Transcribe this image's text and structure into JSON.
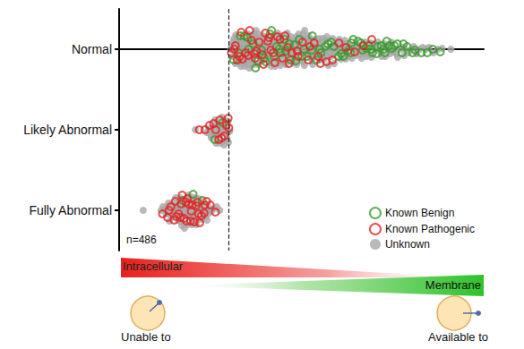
{
  "chart_data": {
    "type": "scatter",
    "categories": [
      "Normal",
      "Likely Abnormal",
      "Fully Abnormal"
    ],
    "xlim": [
      0,
      100
    ],
    "tick_labels": "y",
    "grid": false,
    "legend": "lower right",
    "threshold": {
      "x": 30,
      "line_style": "dashed"
    },
    "series": [
      {
        "name": "Known Benign",
        "color": "#3a9b2c",
        "marker": "open",
        "values": {
          "Normal": [
            31.4,
            32.8,
            34.3,
            35.5,
            36.8,
            38.0,
            39.1,
            40.2,
            41.4,
            42.5,
            33.2,
            35.2,
            37.4,
            39.8,
            41.8,
            43.9,
            45.3,
            46.7,
            48.1,
            49.4,
            44.3,
            45.7,
            47.0,
            48.5,
            50.2,
            51.5,
            52.8,
            54.1,
            55.4,
            56.6,
            50.7,
            53.0,
            55.0,
            57.3,
            58.9,
            60.2,
            61.5,
            62.9,
            64.2,
            65.5,
            58.2,
            60.9,
            63.5,
            66.3,
            67.7,
            69.0,
            70.6,
            71.9,
            73.4,
            74.8,
            63.7,
            66.8,
            68.4,
            70.9,
            72.5,
            74.1,
            76.3,
            77.6,
            79.0,
            80.5,
            69.5,
            72.9,
            75.5,
            78.0,
            81.2,
            82.9,
            84.5,
            86.0,
            88.1,
            43.2
          ],
          "Likely Abnormal": [
            26.2,
            28.4
          ],
          "Fully Abnormal": [
            17.5,
            20.3,
            22.8
          ]
        }
      },
      {
        "name": "Known Pathogenic",
        "color": "#e02424",
        "marker": "open",
        "values": {
          "Normal": [
            30.8,
            31.6,
            32.4,
            33.1,
            33.8,
            34.7,
            35.4,
            36.3,
            37.1,
            37.7,
            38.4,
            39.3,
            40.1,
            40.8,
            41.6,
            42.3,
            43.4,
            44.1,
            44.8,
            45.5,
            31.9,
            33.5,
            35.8,
            37.3,
            39.6,
            41.1,
            42.7,
            46.2,
            47.4,
            48.8,
            50.3,
            51.9,
            53.5,
            55.2,
            56.9,
            58.5,
            60.3,
            62.2,
            64.6,
            67.0,
            46.6,
            49.1,
            52.3,
            54.6,
            69.3
          ],
          "Likely Abnormal": [
            22.0,
            23.5,
            24.8,
            25.9,
            26.5,
            27.3,
            28.1,
            28.9,
            29.4,
            30.1,
            27.6,
            29.9
          ],
          "Fully Abnormal": [
            11.9,
            13.3,
            14.2,
            15.1,
            15.7,
            16.3,
            16.8,
            17.3,
            17.8,
            18.3,
            18.7,
            19.1,
            19.6,
            20.1,
            20.6,
            21.1,
            21.5,
            22.1,
            22.6,
            23.3,
            24.0,
            25.0,
            13.7,
            15.4,
            17.0,
            18.5,
            19.8,
            21.8,
            23.5,
            26.4
          ]
        }
      },
      {
        "name": "Unknown",
        "color": "#a8a8a8",
        "marker": "filled",
        "values": {
          "Normal": [
            30.6,
            31.2,
            31.8,
            32.1,
            32.5,
            33.0,
            33.4,
            33.9,
            34.2,
            34.8,
            30.9,
            31.5,
            32.3,
            32.9,
            33.6,
            34.1,
            34.6,
            35.0,
            35.3,
            35.7,
            31.1,
            31.9,
            32.7,
            33.3,
            34.0,
            34.4,
            35.1,
            35.6,
            36.0,
            36.4,
            35.9,
            36.2,
            36.7,
            37.0,
            37.3,
            37.8,
            38.1,
            38.5,
            38.9,
            39.2,
            36.5,
            36.9,
            37.5,
            37.9,
            38.3,
            38.7,
            39.0,
            39.5,
            39.9,
            40.3,
            40.0,
            40.6,
            40.9,
            41.3,
            41.7,
            42.0,
            42.4,
            42.8,
            43.1,
            43.5,
            40.4,
            41.0,
            41.5,
            41.9,
            42.2,
            42.6,
            43.0,
            43.3,
            43.8,
            44.2,
            44.0,
            44.5,
            44.9,
            45.2,
            45.6,
            46.0,
            46.3,
            46.8,
            47.1,
            47.5,
            44.7,
            45.0,
            45.4,
            45.9,
            46.5,
            46.9,
            47.3,
            47.8,
            48.2,
            48.6,
            48.0,
            48.4,
            48.9,
            49.3,
            49.7,
            50.1,
            50.5,
            50.9,
            51.3,
            51.8,
            49.0,
            49.5,
            50.0,
            50.4,
            50.8,
            51.1,
            51.6,
            52.0,
            52.4,
            52.9,
            52.2,
            52.7,
            53.1,
            53.6,
            54.0,
            54.4,
            54.9,
            55.3,
            55.8,
            56.2,
            53.3,
            53.8,
            54.3,
            54.7,
            55.1,
            55.6,
            56.0,
            56.5,
            57.0,
            57.4,
            56.8,
            57.2,
            57.7,
            58.1,
            58.6,
            59.0,
            59.5,
            59.9,
            60.4,
            60.8,
            57.9,
            58.4,
            59.3,
            60.1,
            60.6,
            61.2,
            61.7,
            62.1,
            62.6,
            63.0,
            61.4,
            62.4,
            63.3,
            63.8,
            64.3,
            64.9,
            65.4,
            66.0,
            66.5,
            67.1,
            64.0,
            65.1,
            66.2,
            67.5,
            68.0,
            68.6,
            69.2,
            69.8,
            70.4,
            71.0,
            67.8,
            69.0,
            70.1,
            71.5,
            72.0,
            72.7,
            73.3,
            74.0,
            74.6,
            75.2,
            71.8,
            73.0,
            74.3,
            75.8,
            76.4,
            77.1,
            77.9,
            78.6,
            79.3,
            80.1,
            76.0,
            78.2,
            80.8,
            81.6,
            82.4,
            83.3,
            84.1,
            85.0,
            86.2,
            87.4,
            33.7,
            34.5,
            36.6,
            38.2,
            39.7,
            41.6,
            43.7,
            46.1,
            48.7,
            51.4,
            32.0,
            35.4,
            37.2,
            39.4,
            42.9,
            45.8,
            50.3,
            53.4,
            55.9,
            58.8,
            37.6,
            41.2,
            44.4,
            47.6,
            52.6,
            56.7,
            61.9,
            65.7,
            88.6,
            91.0
          ],
          "Likely Abnormal": [
            20.9,
            24.1,
            24.6,
            25.0,
            25.3,
            25.7,
            26.0,
            26.3,
            26.6,
            26.9,
            27.2,
            27.5,
            27.8,
            28.0,
            28.3,
            28.5,
            28.8,
            29.0,
            29.3,
            29.5,
            29.8,
            30.0,
            30.3,
            25.5,
            26.8,
            27.7,
            28.6,
            29.6,
            27.0,
            28.2
          ],
          "Fully Abnormal": [
            6.6,
            11.5,
            12.0,
            12.6,
            13.1,
            13.5,
            14.0,
            14.4,
            14.8,
            15.2,
            15.5,
            15.9,
            16.2,
            16.6,
            16.9,
            17.2,
            17.6,
            17.9,
            18.2,
            18.6,
            18.9,
            19.2,
            19.5,
            19.9,
            20.2,
            20.5,
            20.9,
            21.2,
            21.6,
            21.9,
            22.3,
            22.7,
            23.1,
            23.6,
            24.1,
            24.7,
            25.3,
            26.0,
            26.8,
            27.6,
            13.8,
            15.0,
            16.4,
            17.4,
            18.4,
            19.0,
            19.7,
            20.7,
            21.4,
            22.0,
            12.9,
            14.6,
            16.0,
            17.0,
            18.0,
            19.4,
            20.0,
            21.0,
            22.5,
            23.9,
            16.7,
            18.8,
            20.4,
            24.4
          ]
        }
      }
    ],
    "annotations": {
      "n": "n=486",
      "gradient_left": "Intracellular",
      "gradient_right": "Membrane",
      "cell_left": "Unable to",
      "cell_right": "Available to"
    }
  }
}
